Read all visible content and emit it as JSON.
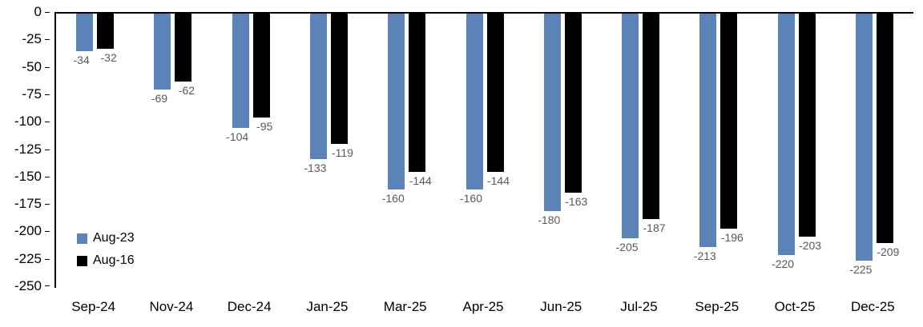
{
  "chart_data": {
    "type": "bar",
    "title": "",
    "xlabel": "",
    "ylabel": "",
    "categories": [
      "Sep-24",
      "Nov-24",
      "Dec-24",
      "Jan-25",
      "Mar-25",
      "Apr-25",
      "Jun-25",
      "Jul-25",
      "Sep-25",
      "Oct-25",
      "Dec-25"
    ],
    "series": [
      {
        "name": "Aug-23",
        "color": "#5b83b8",
        "values": [
          -34,
          -69,
          -104,
          -133,
          -160,
          -160,
          -180,
          -205,
          -213,
          -220,
          -225
        ]
      },
      {
        "name": "Aug-16",
        "color": "#000000",
        "values": [
          -32,
          -62,
          -95,
          -119,
          -144,
          -144,
          -163,
          -187,
          -196,
          -203,
          -209
        ]
      }
    ],
    "ylim": [
      -250,
      0
    ],
    "ytick_step": 25,
    "yticks": [
      0,
      -25,
      -50,
      -75,
      -100,
      -125,
      -150,
      -175,
      -200,
      -225,
      -250
    ],
    "grid": false,
    "legend_position": "bottom-left",
    "data_labels": true
  }
}
